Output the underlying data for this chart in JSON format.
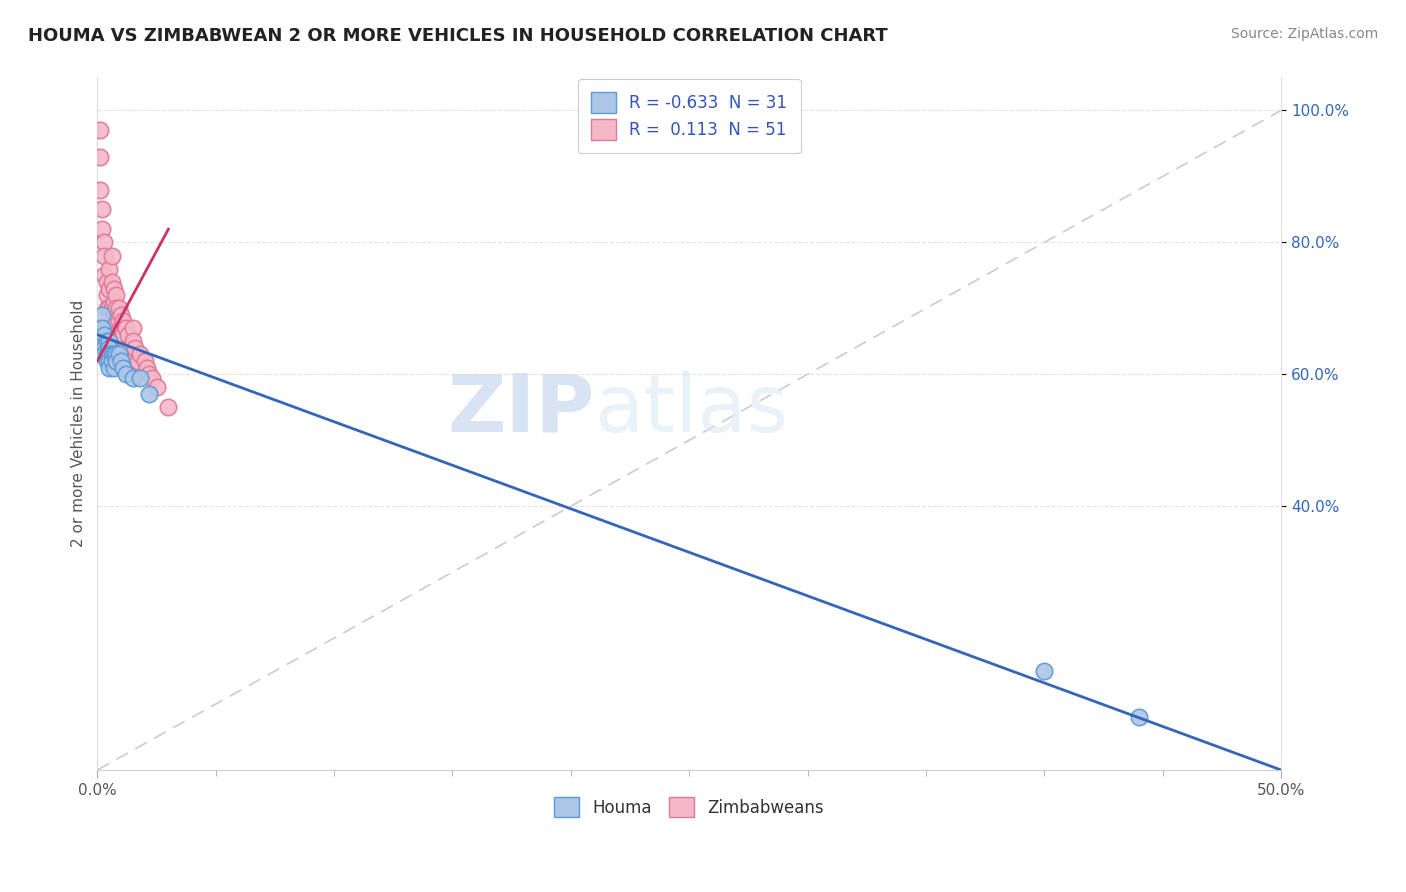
{
  "title": "HOUMA VS ZIMBABWEAN 2 OR MORE VEHICLES IN HOUSEHOLD CORRELATION CHART",
  "source": "Source: ZipAtlas.com",
  "ylabel": "2 or more Vehicles in Household",
  "xlim": [
    0.0,
    0.5
  ],
  "ylim": [
    0.0,
    1.05
  ],
  "xtick_vals": [
    0.0,
    0.5
  ],
  "xtick_labels": [
    "0.0%",
    "50.0%"
  ],
  "ytick_vals": [
    0.4,
    0.6,
    0.8,
    1.0
  ],
  "ytick_labels": [
    "40.0%",
    "60.0%",
    "80.0%",
    "100.0%"
  ],
  "watermark_zip": "ZIP",
  "watermark_atlas": "atlas",
  "legend_r_houma": "-0.633",
  "legend_n_houma": "31",
  "legend_r_zimbabwean": " 0.113",
  "legend_n_zimbabwean": "51",
  "houma_fill_color": "#adc6e8",
  "houma_edge_color": "#5b9bd5",
  "zimbabwean_fill_color": "#f4b8c8",
  "zimbabwean_edge_color": "#e07898",
  "houma_line_color": "#3366bb",
  "zimbabwean_line_color": "#cc3366",
  "dashed_line_color": "#cccccc",
  "houma_points_x": [
    0.001,
    0.001,
    0.002,
    0.002,
    0.002,
    0.003,
    0.003,
    0.003,
    0.004,
    0.004,
    0.004,
    0.005,
    0.005,
    0.005,
    0.005,
    0.005,
    0.006,
    0.006,
    0.007,
    0.007,
    0.008,
    0.008,
    0.009,
    0.01,
    0.011,
    0.012,
    0.015,
    0.018,
    0.022,
    0.4,
    0.44
  ],
  "houma_points_y": [
    0.67,
    0.65,
    0.69,
    0.67,
    0.65,
    0.66,
    0.64,
    0.63,
    0.65,
    0.63,
    0.62,
    0.65,
    0.64,
    0.63,
    0.62,
    0.61,
    0.63,
    0.62,
    0.63,
    0.61,
    0.63,
    0.62,
    0.63,
    0.62,
    0.61,
    0.6,
    0.595,
    0.595,
    0.57,
    0.15,
    0.08
  ],
  "zimbabwean_points_x": [
    0.001,
    0.001,
    0.001,
    0.002,
    0.002,
    0.003,
    0.003,
    0.003,
    0.004,
    0.004,
    0.004,
    0.005,
    0.005,
    0.005,
    0.006,
    0.006,
    0.006,
    0.007,
    0.007,
    0.007,
    0.007,
    0.008,
    0.008,
    0.008,
    0.008,
    0.009,
    0.009,
    0.009,
    0.01,
    0.01,
    0.01,
    0.011,
    0.011,
    0.011,
    0.012,
    0.012,
    0.013,
    0.013,
    0.014,
    0.015,
    0.015,
    0.015,
    0.016,
    0.017,
    0.018,
    0.02,
    0.021,
    0.022,
    0.023,
    0.025,
    0.03
  ],
  "zimbabwean_points_y": [
    0.97,
    0.93,
    0.88,
    0.85,
    0.82,
    0.8,
    0.78,
    0.75,
    0.74,
    0.72,
    0.7,
    0.76,
    0.73,
    0.7,
    0.78,
    0.74,
    0.7,
    0.73,
    0.71,
    0.69,
    0.67,
    0.72,
    0.7,
    0.68,
    0.66,
    0.7,
    0.68,
    0.66,
    0.69,
    0.67,
    0.65,
    0.68,
    0.66,
    0.63,
    0.67,
    0.64,
    0.66,
    0.63,
    0.64,
    0.67,
    0.65,
    0.62,
    0.64,
    0.62,
    0.63,
    0.62,
    0.61,
    0.6,
    0.595,
    0.58,
    0.55
  ],
  "houma_trendline_x": [
    0.0,
    0.5
  ],
  "houma_trendline_y": [
    0.66,
    0.0
  ],
  "zimbabwean_trendline_x": [
    0.0,
    0.03
  ],
  "zimbabwean_trendline_y": [
    0.62,
    0.82
  ],
  "dashed_line_x": [
    0.0,
    0.5
  ],
  "dashed_line_y": [
    0.0,
    1.0
  ]
}
